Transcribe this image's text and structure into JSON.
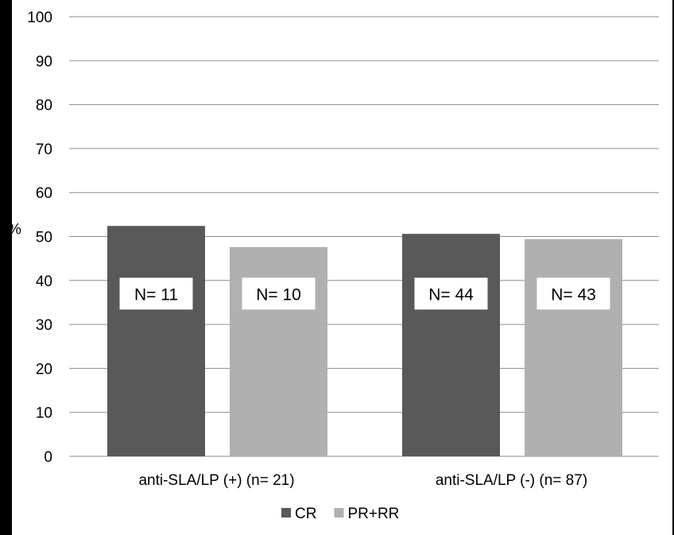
{
  "chart_data": {
    "type": "bar",
    "title": "",
    "ylabel": "%",
    "xlabel": "",
    "ylim": [
      0,
      100
    ],
    "yticks": [
      0,
      10,
      20,
      30,
      40,
      50,
      60,
      70,
      80,
      90,
      100
    ],
    "grid": true,
    "legend_position": "bottom",
    "categories": [
      "anti-SLA/LP (+) (n= 21)",
      "anti-SLA/LP (-) (n= 87)"
    ],
    "series": [
      {
        "name": "CR",
        "color": "#595959",
        "values": [
          52.4,
          50.6
        ],
        "labels": [
          "N= 11",
          "N= 44"
        ]
      },
      {
        "name": "PR+RR",
        "color": "#b0b0b0",
        "values": [
          47.6,
          49.4
        ],
        "labels": [
          "N= 10",
          "N= 43"
        ]
      }
    ]
  }
}
